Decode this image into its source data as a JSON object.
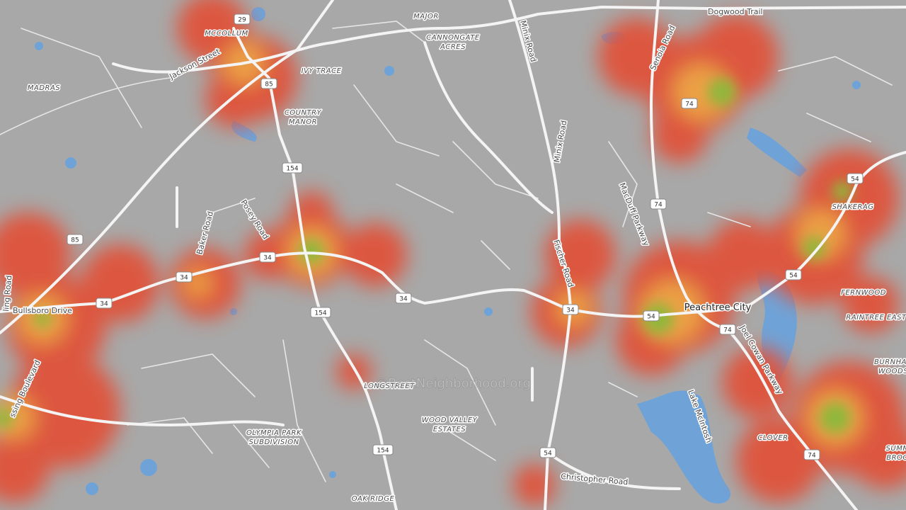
{
  "places": [
    "MCCOLLUM",
    "MADRAS",
    "IVY TRACE",
    "COUNTRY",
    "MANOR",
    "MAJOR",
    "CANNONGATE",
    "ACRES",
    "LONGSTREET",
    "WOOD VALLEY",
    "ESTATES",
    "OLYMPIA PARK",
    "SUBDIVISION",
    "OAK RIDGE",
    "SHAKERAG",
    "FERNWOOD",
    "RAINTREE EAST",
    "BURNHA",
    "WOODS",
    "SUMM",
    "BROO",
    "CLOVER"
  ],
  "city": "Peachtree City",
  "roads": [
    "Jackson Street",
    "Dogwood Trail",
    "Minix Road",
    "Minix Road",
    "Senoia Road",
    "MacDuff Parkway",
    "Fischer Road",
    "Posey Road",
    "Baker Road",
    "Bullsboro Drive",
    "ssing Boulevard",
    "ling Road",
    "Joel Cowan Parkway",
    "Lake McIntosh",
    "Christopher Road"
  ],
  "shields": [
    "29",
    "85",
    "85",
    "154",
    "154",
    "154",
    "34",
    "34",
    "34",
    "34",
    "34",
    "54",
    "54",
    "54",
    "54",
    "74",
    "74",
    "74",
    "74"
  ],
  "watermark": "©BestNeighborhood.org"
}
